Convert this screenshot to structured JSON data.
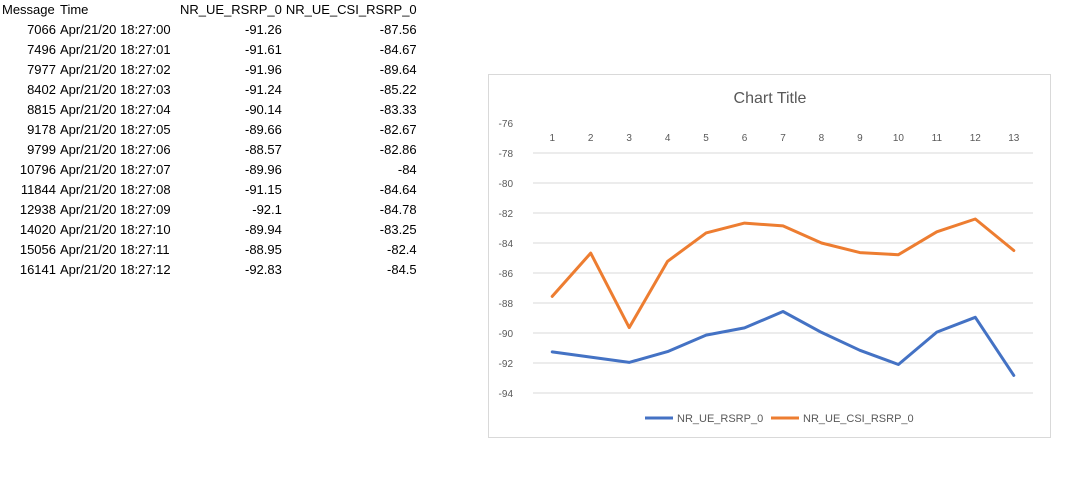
{
  "table": {
    "headers": [
      "Message",
      "Time",
      "NR_UE_RSRP_0",
      "NR_UE_CSI_RSRP_0"
    ],
    "rows": [
      [
        "7066",
        "Apr/21/20 18:27:00",
        "-91.26",
        "-87.56"
      ],
      [
        "7496",
        "Apr/21/20 18:27:01",
        "-91.61",
        "-84.67"
      ],
      [
        "7977",
        "Apr/21/20 18:27:02",
        "-91.96",
        "-89.64"
      ],
      [
        "8402",
        "Apr/21/20 18:27:03",
        "-91.24",
        "-85.22"
      ],
      [
        "8815",
        "Apr/21/20 18:27:04",
        "-90.14",
        "-83.33"
      ],
      [
        "9178",
        "Apr/21/20 18:27:05",
        "-89.66",
        "-82.67"
      ],
      [
        "9799",
        "Apr/21/20 18:27:06",
        "-88.57",
        "-82.86"
      ],
      [
        "10796",
        "Apr/21/20 18:27:07",
        "-89.96",
        "-84"
      ],
      [
        "11844",
        "Apr/21/20 18:27:08",
        "-91.15",
        "-84.64"
      ],
      [
        "12938",
        "Apr/21/20 18:27:09",
        "-92.1",
        "-84.78"
      ],
      [
        "14020",
        "Apr/21/20 18:27:10",
        "-89.94",
        "-83.25"
      ],
      [
        "15056",
        "Apr/21/20 18:27:11",
        "-88.95",
        "-82.4"
      ],
      [
        "16141",
        "Apr/21/20 18:27:12",
        "-92.83",
        "-84.5"
      ]
    ]
  },
  "chart_data": {
    "type": "line",
    "title": "Chart Title",
    "xlabel": "",
    "ylabel": "",
    "categories": [
      "1",
      "2",
      "3",
      "4",
      "5",
      "6",
      "7",
      "8",
      "9",
      "10",
      "11",
      "12",
      "13"
    ],
    "x_axis_position": "top",
    "ylim": [
      -94,
      -76
    ],
    "y_ticks": [
      "-76",
      "-78",
      "-80",
      "-82",
      "-84",
      "-86",
      "-88",
      "-90",
      "-92",
      "-94"
    ],
    "grid": true,
    "legend": "bottom",
    "series": [
      {
        "name": "NR_UE_RSRP_0",
        "color": "#4472c4",
        "values": [
          -91.26,
          -91.61,
          -91.96,
          -91.24,
          -90.14,
          -89.66,
          -88.57,
          -89.96,
          -91.15,
          -92.1,
          -89.94,
          -88.95,
          -92.83
        ]
      },
      {
        "name": "NR_UE_CSI_RSRP_0",
        "color": "#ed7d31",
        "values": [
          -87.56,
          -84.67,
          -89.64,
          -85.22,
          -83.33,
          -82.67,
          -82.86,
          -84,
          -84.64,
          -84.78,
          -83.25,
          -82.4,
          -84.5
        ]
      }
    ]
  }
}
